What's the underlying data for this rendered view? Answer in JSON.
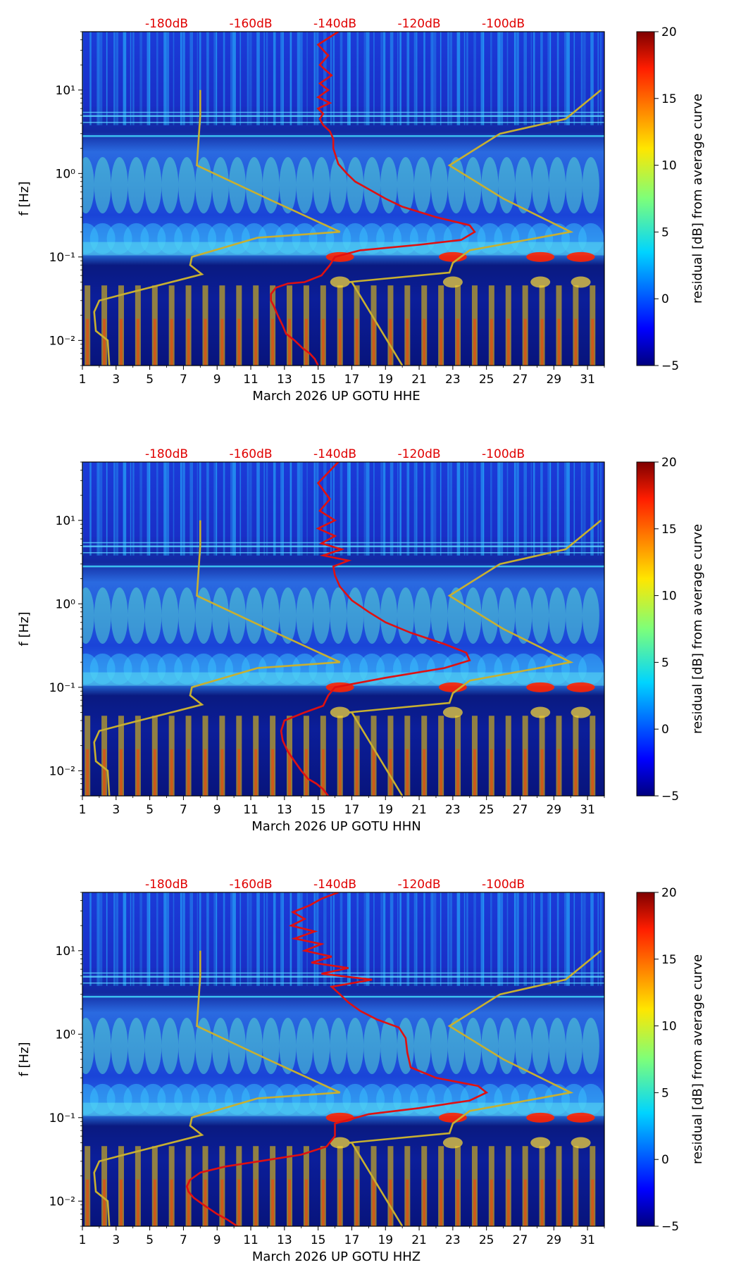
{
  "colors": {
    "noise_curve": "#e01010",
    "model_curve": "#c8b030",
    "top_label": "#e00000",
    "axis": "#000000"
  },
  "colorbar": {
    "label": "residual [dB] from average curve",
    "ticks": [
      "20",
      "15",
      "10",
      "5",
      "0",
      "−5"
    ],
    "range": [
      -5,
      20
    ],
    "colormap": "jet"
  },
  "chart_data": [
    {
      "type": "heatmap",
      "xlabel": "March 2026 UP GOTU  HHE",
      "ylabel": "f [Hz]",
      "x_ticks": [
        "1",
        "3",
        "5",
        "7",
        "9",
        "11",
        "13",
        "15",
        "17",
        "19",
        "21",
        "23",
        "25",
        "27",
        "29",
        "31"
      ],
      "xlim": [
        1,
        32
      ],
      "y_ticks": [
        "10⁻²",
        "10⁻¹",
        "10⁰",
        "10¹"
      ],
      "ylim_hz": [
        0.005,
        50
      ],
      "yscale": "log",
      "top_ticks": [
        "-180dB",
        "-160dB",
        "-140dB",
        "-120dB",
        "-100dB"
      ],
      "noise_curve_x": [
        15,
        14.8,
        14.5,
        14.1,
        13.6,
        13.1,
        12.9,
        12.6,
        12.4,
        12.2,
        12.2,
        12.5,
        13.2,
        14.2,
        15.2,
        15.7,
        16.0,
        17.5,
        21.0,
        23.5,
        24.3,
        24.0,
        22.0,
        20.0,
        19.0,
        18.0,
        17.2,
        16.7,
        16.2,
        15.9,
        15.9,
        15.7,
        15.3,
        15.1,
        15.3,
        15.0,
        15.7,
        15.0,
        15.6,
        15.1,
        15.8,
        15.1,
        15.6,
        15.0,
        16.2
      ],
      "noise_curve_y": [
        0.005,
        0.006,
        0.007,
        0.008,
        0.01,
        0.012,
        0.015,
        0.02,
        0.025,
        0.03,
        0.036,
        0.043,
        0.048,
        0.05,
        0.06,
        0.08,
        0.1,
        0.12,
        0.14,
        0.16,
        0.2,
        0.24,
        0.3,
        0.4,
        0.5,
        0.65,
        0.8,
        1.0,
        1.3,
        2.0,
        2.6,
        3.2,
        3.8,
        4.5,
        5.2,
        6.0,
        7.0,
        8.2,
        10,
        12,
        15,
        20,
        26,
        35,
        50
      ],
      "model_curve_x": [
        2.6,
        2.5,
        1.8,
        1.7,
        2.0,
        3.5,
        8.1,
        7.4,
        7.5,
        11.4,
        16.3,
        12.0,
        7.8,
        7.9,
        8.0,
        8.0,
        17.0,
        17.0,
        20.0,
        17.0,
        16.8,
        22.8,
        23.0,
        24.0,
        30.0,
        26.0,
        22.8,
        25.8,
        29.7,
        31.8
      ],
      "model_curve_y": [
        0.005,
        0.01,
        0.013,
        0.022,
        0.03,
        0.036,
        0.062,
        0.08,
        0.1,
        0.17,
        0.2,
        0.5,
        1.25,
        2.5,
        5.0,
        10.0,
        0.05,
        0.05,
        0.005,
        0.05,
        0.05,
        0.065,
        0.085,
        0.12,
        0.2,
        0.5,
        1.25,
        3.0,
        4.5,
        10.0
      ]
    },
    {
      "type": "heatmap",
      "xlabel": "March 2026 UP GOTU  HHN",
      "ylabel": "f [Hz]",
      "x_ticks": [
        "1",
        "3",
        "5",
        "7",
        "9",
        "11",
        "13",
        "15",
        "17",
        "19",
        "21",
        "23",
        "25",
        "27",
        "29",
        "31"
      ],
      "xlim": [
        1,
        32
      ],
      "y_ticks": [
        "10⁻²",
        "10⁻¹",
        "10⁰",
        "10¹"
      ],
      "ylim_hz": [
        0.005,
        50
      ],
      "yscale": "log",
      "top_ticks": [
        "-180dB",
        "-160dB",
        "-140dB",
        "-120dB",
        "-100dB"
      ],
      "noise_curve_x": [
        15.6,
        15.3,
        14.9,
        14.4,
        14.0,
        13.6,
        13.2,
        12.9,
        12.8,
        13.0,
        14.2,
        15.3,
        15.6,
        16.0,
        19.0,
        22.5,
        24.0,
        23.8,
        22.5,
        20.5,
        19.0,
        18.0,
        17.0,
        16.3,
        16.0,
        15.9,
        16.8,
        15.3,
        16.4,
        15.2,
        16.0,
        15.0,
        16.0,
        15.1,
        15.7,
        15.0,
        16.2
      ],
      "noise_curve_y": [
        0.005,
        0.006,
        0.007,
        0.008,
        0.01,
        0.013,
        0.017,
        0.023,
        0.03,
        0.04,
        0.05,
        0.06,
        0.08,
        0.1,
        0.13,
        0.17,
        0.21,
        0.26,
        0.33,
        0.45,
        0.6,
        0.8,
        1.1,
        1.6,
        2.2,
        2.8,
        3.3,
        3.8,
        4.5,
        5.3,
        6.5,
        8,
        10,
        13,
        18,
        28,
        50
      ],
      "model_curve_x": [
        2.6,
        2.5,
        1.8,
        1.7,
        2.0,
        3.5,
        8.1,
        7.4,
        7.5,
        11.4,
        16.3,
        12.0,
        7.8,
        7.9,
        8.0,
        8.0,
        17.0,
        17.0,
        20.0,
        17.0,
        16.8,
        22.8,
        23.0,
        24.0,
        30.0,
        26.0,
        22.8,
        25.8,
        29.7,
        31.8
      ],
      "model_curve_y": [
        0.005,
        0.01,
        0.013,
        0.022,
        0.03,
        0.036,
        0.062,
        0.08,
        0.1,
        0.17,
        0.2,
        0.5,
        1.25,
        2.5,
        5.0,
        10.0,
        0.05,
        0.05,
        0.005,
        0.05,
        0.05,
        0.065,
        0.085,
        0.12,
        0.2,
        0.5,
        1.25,
        3.0,
        4.5,
        10.0
      ]
    },
    {
      "type": "heatmap",
      "xlabel": "March 2026 UP GOTU  HHZ",
      "ylabel": "f [Hz]",
      "x_ticks": [
        "1",
        "3",
        "5",
        "7",
        "9",
        "11",
        "13",
        "15",
        "17",
        "19",
        "21",
        "23",
        "25",
        "27",
        "29",
        "31"
      ],
      "xlim": [
        1,
        32
      ],
      "y_ticks": [
        "10⁻²",
        "10⁻¹",
        "10⁰",
        "10¹"
      ],
      "ylim_hz": [
        0.005,
        50
      ],
      "yscale": "log",
      "top_ticks": [
        "-180dB",
        "-160dB",
        "-140dB",
        "-120dB",
        "-100dB"
      ],
      "noise_curve_x": [
        10.2,
        9.6,
        9.0,
        8.2,
        7.6,
        7.3,
        7.2,
        7.4,
        8.0,
        9.5,
        11.5,
        14.0,
        15.5,
        16.0,
        16.0,
        18.0,
        21.0,
        24.0,
        25.0,
        24.5,
        22.0,
        20.5,
        20.3,
        20.2,
        19.8,
        18.5,
        17.5,
        16.8,
        16.3,
        15.8,
        18.2,
        15.2,
        16.8,
        14.6,
        15.8,
        14.2,
        15.2,
        13.6,
        14.8,
        13.4,
        14.2,
        13.5,
        14.5,
        15.2,
        16.2
      ],
      "noise_curve_y": [
        0.005,
        0.006,
        0.007,
        0.009,
        0.011,
        0.013,
        0.015,
        0.018,
        0.022,
        0.026,
        0.03,
        0.036,
        0.045,
        0.06,
        0.085,
        0.11,
        0.13,
        0.16,
        0.2,
        0.24,
        0.3,
        0.4,
        0.6,
        0.9,
        1.2,
        1.5,
        1.9,
        2.4,
        3.0,
        3.7,
        4.5,
        5.3,
        6.2,
        7.2,
        8.5,
        10,
        12,
        14,
        17,
        20,
        24,
        29,
        35,
        42,
        50
      ],
      "model_curve_x": [
        2.6,
        2.5,
        1.8,
        1.7,
        2.0,
        3.5,
        8.1,
        7.4,
        7.5,
        11.4,
        16.3,
        12.0,
        7.8,
        7.9,
        8.0,
        8.0,
        17.0,
        17.0,
        20.0,
        17.0,
        16.8,
        22.8,
        23.0,
        24.0,
        30.0,
        26.0,
        22.8,
        25.8,
        29.7,
        31.8
      ],
      "model_curve_y": [
        0.005,
        0.01,
        0.013,
        0.022,
        0.03,
        0.036,
        0.062,
        0.08,
        0.1,
        0.17,
        0.2,
        0.5,
        1.25,
        2.5,
        5.0,
        10.0,
        0.05,
        0.05,
        0.005,
        0.05,
        0.05,
        0.065,
        0.085,
        0.12,
        0.2,
        0.5,
        1.25,
        3.0,
        4.5,
        10.0
      ]
    }
  ]
}
